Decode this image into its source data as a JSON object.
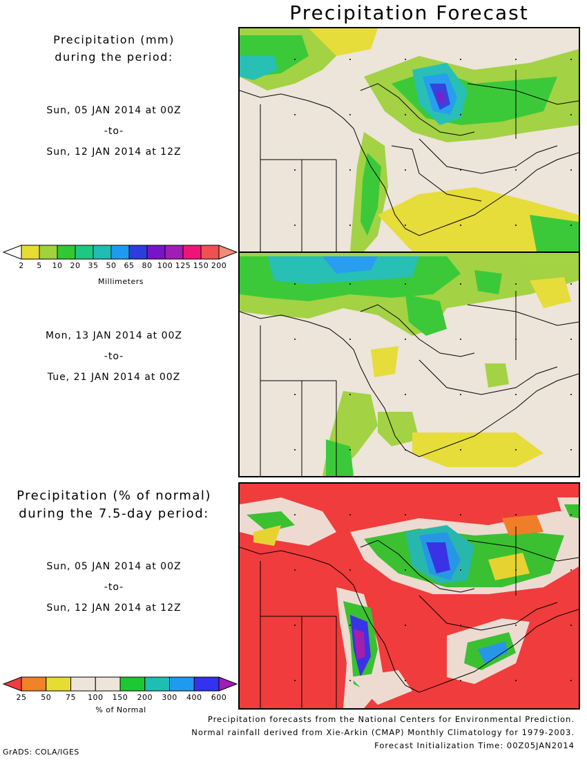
{
  "title": "Precipitation Forecast",
  "panel1": {
    "header_line1": "Precipitation (mm)",
    "header_line2": "during the period:",
    "start": "Sun, 05 JAN 2014 at 00Z",
    "sep": "-to-",
    "end": "Sun, 12 JAN 2014 at 12Z"
  },
  "panel2": {
    "start": "Mon, 13 JAN 2014 at 00Z",
    "sep": "-to-",
    "end": "Tue, 21 JAN 2014 at 00Z"
  },
  "panel3": {
    "header_line1": "Precipitation (% of normal)",
    "header_line2": "during the 7.5-day period:",
    "start": "Sun, 05 JAN 2014 at 00Z",
    "sep": "-to-",
    "end": "Sun, 12 JAN 2014 at 12Z"
  },
  "colorbar_mm": {
    "title": "Millimeters",
    "labels": [
      "2",
      "5",
      "10",
      "20",
      "35",
      "50",
      "65",
      "80",
      "100",
      "125",
      "150",
      "200"
    ],
    "colors": [
      "#ffffff",
      "#e6dc32",
      "#a0d23c",
      "#32c832",
      "#1ec882",
      "#1ebeb4",
      "#1e9bf0",
      "#2d3cdc",
      "#7814c8",
      "#a01eb4",
      "#f0147a",
      "#f05050",
      "#f08c78"
    ]
  },
  "colorbar_pct": {
    "title": "% of Normal",
    "labels": [
      "25",
      "50",
      "75",
      "100",
      "150",
      "200",
      "300",
      "400",
      "600"
    ],
    "colors": [
      "#f03c3c",
      "#f08228",
      "#e6dc32",
      "#ede4da",
      "#ede4da",
      "#1ec832",
      "#1ebeb4",
      "#1e9bf0",
      "#3232f0",
      "#a01eb4"
    ]
  },
  "credits": {
    "line1": "Precipitation forecasts from the National Centers for Environmental Prediction.",
    "line2": "Normal rainfall derived from Xie-Arkin (CMAP) Monthly Climatology for 1979-2003.",
    "line3": "Forecast Initialization Time: 00Z05JAN2014"
  },
  "software": "GrADS: COLA/IGES"
}
